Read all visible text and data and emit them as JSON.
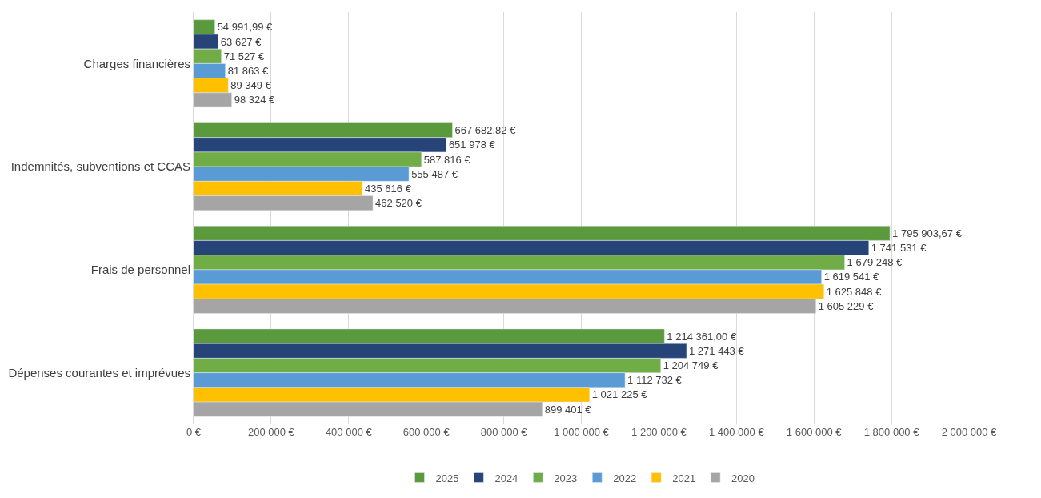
{
  "chart_data": {
    "type": "bar",
    "orientation": "horizontal",
    "categories": [
      "Charges financières",
      "Indemnités, subventions et CCAS",
      "Frais de personnel",
      "Dépenses courantes et imprévues"
    ],
    "series": [
      {
        "name": "2025",
        "color": "#5a9a3c",
        "values": [
          54991.99,
          667682.82,
          1795903.67,
          1214361.0
        ],
        "value_labels": [
          "54 991,99 €",
          "667 682,82 €",
          "1 795 903,67 €",
          "1 214 361,00 €"
        ]
      },
      {
        "name": "2024",
        "color": "#264478",
        "values": [
          63627,
          651978,
          1741531,
          1271443
        ],
        "value_labels": [
          "63 627 €",
          "651 978 €",
          "1 741 531 €",
          "1 271 443 €"
        ]
      },
      {
        "name": "2023",
        "color": "#70ad47",
        "values": [
          71527,
          587816,
          1679248,
          1204749
        ],
        "value_labels": [
          "71 527 €",
          "587 816 €",
          "1 679 248 €",
          "1 204 749 €"
        ]
      },
      {
        "name": "2022",
        "color": "#5b9bd5",
        "values": [
          81863,
          555487,
          1619541,
          1112732
        ],
        "value_labels": [
          "81 863 €",
          "555 487 €",
          "1 619 541 €",
          "1 112 732 €"
        ]
      },
      {
        "name": "2021",
        "color": "#ffc000",
        "values": [
          89349,
          435616,
          1625848,
          1021225
        ],
        "value_labels": [
          "89 349 €",
          "435 616 €",
          "1 625 848 €",
          "1 021 225 €"
        ]
      },
      {
        "name": "2020",
        "color": "#a5a5a5",
        "values": [
          98324,
          462520,
          1605229,
          899401
        ],
        "value_labels": [
          "98 324 €",
          "462 520 €",
          "1 605 229 €",
          "899 401 €"
        ]
      }
    ],
    "xlim": [
      0,
      2000000
    ],
    "xticks": [
      {
        "value": 0,
        "label": "0 €"
      },
      {
        "value": 200000,
        "label": "200 000 €"
      },
      {
        "value": 400000,
        "label": "400 000 €"
      },
      {
        "value": 600000,
        "label": "600 000 €"
      },
      {
        "value": 800000,
        "label": "800 000 €"
      },
      {
        "value": 1000000,
        "label": "1 000 000 €"
      },
      {
        "value": 1200000,
        "label": "1 200 000 €"
      },
      {
        "value": 1400000,
        "label": "1 400 000 €"
      },
      {
        "value": 1600000,
        "label": "1 600 000 €"
      },
      {
        "value": 1800000,
        "label": "1 800 000 €"
      },
      {
        "value": 2000000,
        "label": "2 000 000 €"
      }
    ],
    "grid": "x",
    "legend": "bottom"
  }
}
